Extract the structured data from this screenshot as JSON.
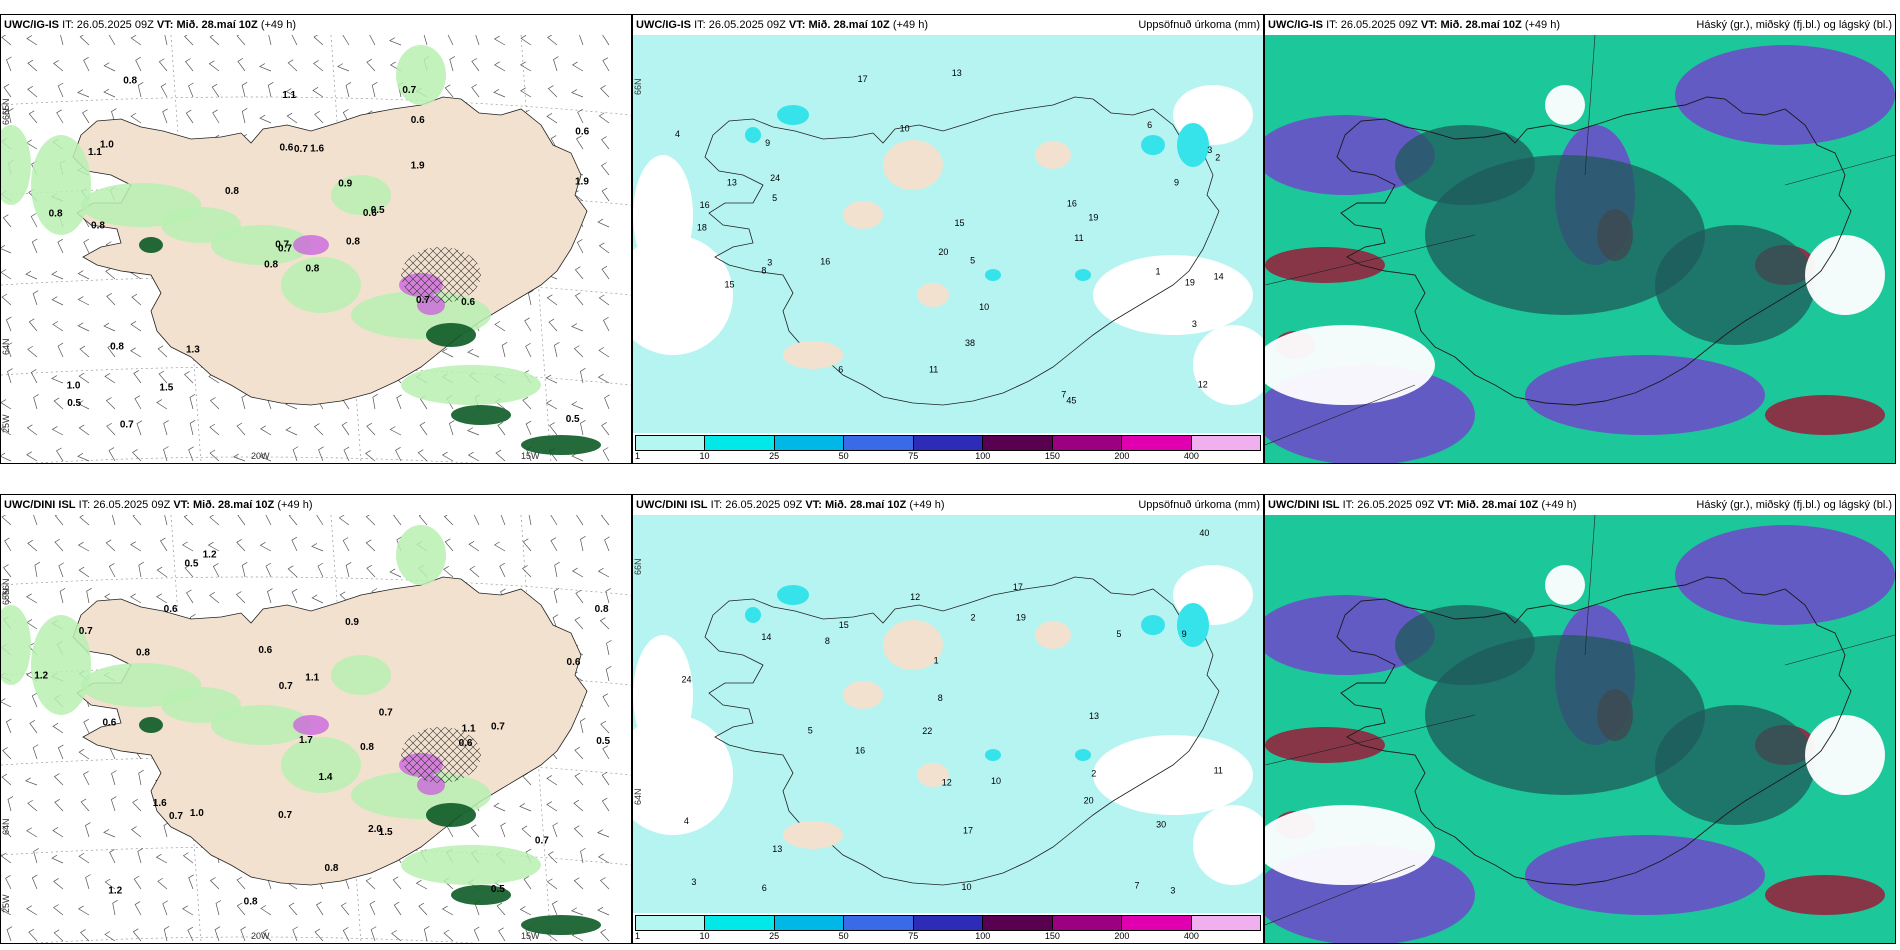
{
  "panels": [
    {
      "model": "UWC/IG-IS",
      "it_label": "IT:",
      "it_value": "26.05.2025 09Z",
      "vt_label": "VT:",
      "vt_value": "Mið. 28.maí 10Z",
      "lead": "(+49 h)",
      "right_title": "",
      "kind": "wind",
      "axis_labels": [
        "20W",
        "15W",
        "65N",
        "64N",
        "25W",
        "66N"
      ],
      "values": [
        "0.8",
        "1.1",
        "0.7",
        "1.0",
        "0.6",
        "1.3",
        "0.7",
        "1.6",
        "0.6",
        "0.8",
        "0.8",
        "0.5",
        "0.8",
        "0.6",
        "0.8",
        "1.9",
        "0.7",
        "0.6",
        "0.9",
        "0.8",
        "0.8",
        "0.5",
        "1.5",
        "0.7",
        "0.5",
        "0.6",
        "1.0",
        "1.1",
        "0.8",
        "0.7",
        "1.9",
        "0.7"
      ]
    },
    {
      "model": "UWC/IG-IS",
      "it_label": "IT:",
      "it_value": "26.05.2025 09Z",
      "vt_label": "VT:",
      "vt_value": "Mið. 28.maí 10Z",
      "lead": "(+49 h)",
      "right_title": "Uppsöfnuð úrkoma (mm)",
      "kind": "precip",
      "axis_labels": [
        "66N"
      ],
      "values": [
        "3",
        "1",
        "6",
        "9",
        "10",
        "7",
        "2",
        "3",
        "5",
        "11",
        "13",
        "16",
        "19",
        "45",
        "38",
        "13",
        "15",
        "17",
        "12",
        "16",
        "20",
        "15",
        "19",
        "16",
        "24",
        "14",
        "18",
        "6",
        "10",
        "8",
        "5",
        "4",
        "3",
        "9",
        "11"
      ]
    },
    {
      "model": "UWC/IG-IS",
      "it_label": "IT:",
      "it_value": "26.05.2025 09Z",
      "vt_label": "VT:",
      "vt_value": "Mið. 28.maí 10Z",
      "lead": "(+49 h)",
      "right_title": "Háský (gr.), miðský (fj.bl.) og lágský (bl.)",
      "kind": "cloud",
      "axis_labels": [],
      "values": []
    },
    {
      "model": "UWC/DINI ISL",
      "it_label": "IT:",
      "it_value": "26.05.2025 09Z",
      "vt_label": "VT:",
      "vt_value": "Mið. 28.maí 10Z",
      "lead": "(+49 h)",
      "right_title": "",
      "kind": "wind",
      "axis_labels": [
        "20W",
        "15W",
        "66N",
        "64N",
        "25W",
        "65N"
      ],
      "values": [
        "0.8",
        "0.7",
        "0.7",
        "0.5",
        "1.0",
        "0.9",
        "1.2",
        "0.8",
        "0.7",
        "0.6",
        "1.2",
        "1.1",
        "0.5",
        "0.7",
        "1.4",
        "0.8",
        "0.6",
        "1.7",
        "1.6",
        "0.7",
        "0.5",
        "0.7",
        "0.6",
        "0.8",
        "0.6",
        "1.2",
        "0.8",
        "1.5",
        "1.1",
        "0.6",
        "0.7",
        "2.0"
      ]
    },
    {
      "model": "UWC/DINI ISL",
      "it_label": "IT:",
      "it_value": "26.05.2025 09Z",
      "vt_label": "VT:",
      "vt_value": "Mið. 28.maí 10Z",
      "lead": "(+49 h)",
      "right_title": "Uppsöfnuð úrkoma (mm)",
      "kind": "precip",
      "axis_labels": [
        "66N",
        "64N"
      ],
      "values": [
        "1",
        "3",
        "2",
        "10",
        "13",
        "22",
        "16",
        "8",
        "7",
        "5",
        "12",
        "14",
        "17",
        "40",
        "30",
        "20",
        "15",
        "13",
        "11",
        "9",
        "17",
        "19",
        "24",
        "6",
        "4",
        "3",
        "12",
        "10",
        "8",
        "5",
        "2"
      ]
    },
    {
      "model": "UWC/DINI ISL",
      "it_label": "IT:",
      "it_value": "26.05.2025 09Z",
      "vt_label": "VT:",
      "vt_value": "Mið. 28.maí 10Z",
      "lead": "(+49 h)",
      "right_title": "Háský (gr.), miðský (fj.bl.) og lágský (bl.)",
      "kind": "cloud",
      "axis_labels": [],
      "values": []
    }
  ],
  "precip_legend": {
    "ticks": [
      "1",
      "10",
      "25",
      "50",
      "75",
      "100",
      "150",
      "200",
      "400"
    ],
    "colors": [
      "#b4f7f2",
      "#00e8e8",
      "#00b8e8",
      "#3a6ae8",
      "#2c2cb8",
      "#5a0050",
      "#9a0080",
      "#e000b0",
      "#f0b0f0"
    ]
  },
  "colors": {
    "land": "#f2e1cf",
    "precip_light": "#b6f4f2",
    "precip_mid": "#36e3ea",
    "wind_green_light": "#b9f0b1",
    "wind_green_dark": "#0c5a26",
    "wind_purple": "#cc66dd",
    "cloud_teal": "#1cc89a",
    "cloud_dark": "#1f5a5a",
    "cloud_purple": "#6a4fc8",
    "cloud_red": "#9a1c3a"
  }
}
